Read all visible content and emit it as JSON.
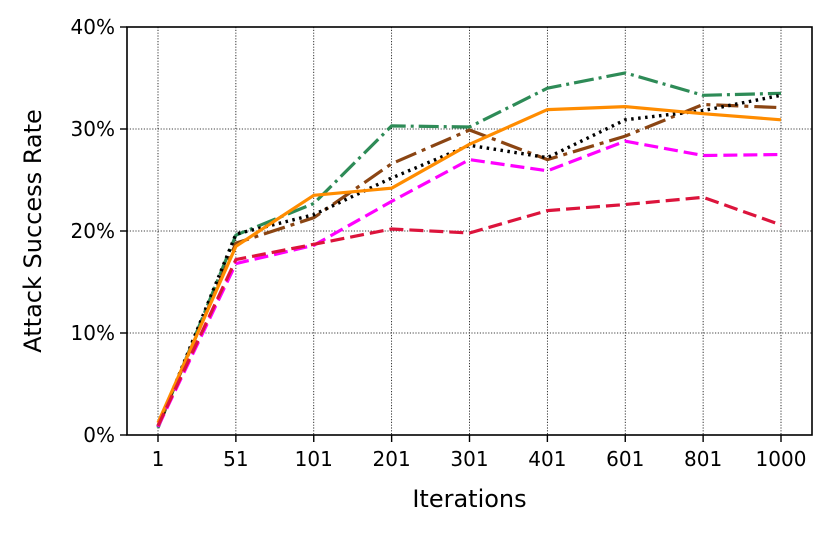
{
  "chart_data": {
    "type": "line",
    "xlabel": "Iterations",
    "ylabel": "Attack Success Rate",
    "categories": [
      "1",
      "51",
      "101",
      "201",
      "301",
      "401",
      "601",
      "801",
      "1000"
    ],
    "ylim": [
      0,
      40
    ],
    "yticks": [
      0,
      10,
      20,
      30,
      40
    ],
    "ytick_labels": [
      "0%",
      "10%",
      "20%",
      "30%",
      "40%"
    ],
    "grid": true,
    "series": [
      {
        "color": "#2e8b57",
        "dash": "dashdot",
        "values": [
          0.7,
          19.6,
          22.7,
          30.3,
          30.2,
          34.0,
          35.5,
          33.3,
          33.5
        ]
      },
      {
        "color": "#8b4513",
        "dash": "dashdot-long",
        "values": [
          0.9,
          18.8,
          21.3,
          26.6,
          29.9,
          27.0,
          29.3,
          32.4,
          32.1
        ]
      },
      {
        "color": "#000000",
        "dash": "dotted",
        "values": [
          0.8,
          19.7,
          21.6,
          25.2,
          28.4,
          27.2,
          30.9,
          31.8,
          33.3
        ]
      },
      {
        "color": "#ff8c00",
        "dash": "solid",
        "values": [
          1.2,
          18.5,
          23.5,
          24.2,
          28.5,
          31.9,
          32.2,
          31.5,
          30.9
        ]
      },
      {
        "color": "#ff00ff",
        "dash": "dashed",
        "values": [
          0.8,
          16.8,
          18.6,
          22.9,
          27.0,
          25.9,
          28.8,
          27.4,
          27.5
        ]
      },
      {
        "color": "#dc143c",
        "dash": "dashed",
        "values": [
          0.9,
          17.2,
          18.7,
          20.2,
          19.8,
          22.0,
          22.6,
          23.3,
          20.6
        ]
      }
    ]
  }
}
